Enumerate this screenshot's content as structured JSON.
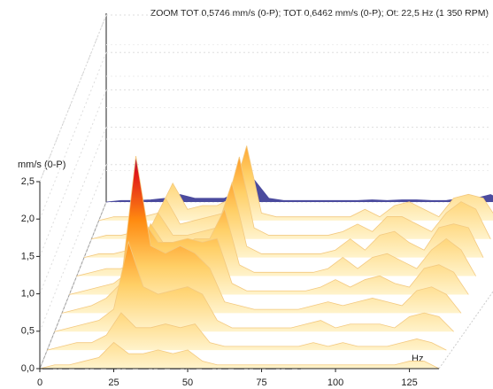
{
  "chart_data": {
    "type": "waterfall",
    "title": "ZOOM TOT 0,5746 mm/s (0-P); TOT 0,6462 mm/s (0-P); Ot: 22,5 Hz (1 350 RPM)",
    "ylabel": "mm/s (0-P)",
    "xlabel": "Hz",
    "x": [
      0,
      5,
      10,
      15,
      20,
      25,
      30,
      35,
      40,
      45,
      50,
      55,
      60,
      65,
      70,
      75,
      80,
      85,
      90,
      95,
      100,
      105,
      110,
      115,
      120,
      125,
      130,
      135
    ],
    "series": [
      {
        "values": [
          0,
          0.05,
          0.05,
          0.1,
          0.15,
          0.35,
          0.2,
          0.2,
          0.25,
          0.2,
          0.25,
          0.1,
          0.05,
          0.05,
          0.05,
          0.05,
          0.05,
          0.05,
          0.05,
          0.05,
          0.05,
          0.05,
          0.05,
          0.05,
          0.05,
          0.1,
          0.1,
          0
        ]
      },
      {
        "values": [
          0,
          0.05,
          0.1,
          0.1,
          0.2,
          0.5,
          0.3,
          0.3,
          0.35,
          0.3,
          0.35,
          0.1,
          0.05,
          0.05,
          0.05,
          0.05,
          0.05,
          0.05,
          0.1,
          0.05,
          0.1,
          0.05,
          0.05,
          0.05,
          0.1,
          0.15,
          0.1,
          0
        ]
      },
      {
        "values": [
          0,
          0.05,
          0.1,
          0.15,
          0.3,
          1.2,
          0.6,
          0.5,
          0.55,
          0.6,
          0.5,
          0.15,
          0.05,
          0.05,
          0.05,
          0.05,
          0.05,
          0.1,
          0.15,
          0.05,
          0.1,
          0.1,
          0.1,
          0.05,
          0.2,
          0.25,
          0.2,
          0
        ]
      },
      {
        "values": [
          0,
          0.05,
          0.1,
          0.2,
          0.4,
          2.1,
          0.9,
          0.8,
          0.9,
          0.8,
          0.6,
          0.15,
          0.1,
          0.05,
          0.05,
          0.05,
          0.05,
          0.1,
          0.15,
          0.1,
          0.15,
          0.2,
          0.15,
          0.1,
          0.3,
          0.35,
          0.25,
          0
        ]
      },
      {
        "values": [
          0,
          0.05,
          0.1,
          0.15,
          0.3,
          1.0,
          0.7,
          0.7,
          0.75,
          0.7,
          0.75,
          0.15,
          0.05,
          0.05,
          0.05,
          0.05,
          0.05,
          0.1,
          0.2,
          0.1,
          0.2,
          0.25,
          0.15,
          0.1,
          0.35,
          0.4,
          0.3,
          0
        ]
      },
      {
        "values": [
          0,
          0.05,
          0.1,
          0.1,
          0.2,
          0.7,
          0.4,
          0.4,
          0.5,
          0.5,
          0.9,
          0.15,
          0.05,
          0.05,
          0.05,
          0.05,
          0.05,
          0.1,
          0.25,
          0.1,
          0.25,
          0.3,
          0.2,
          0.1,
          0.35,
          0.5,
          0.35,
          0
        ]
      },
      {
        "values": [
          0,
          0.05,
          0.05,
          0.1,
          0.2,
          0.6,
          0.3,
          0.3,
          0.35,
          0.4,
          1.0,
          0.15,
          0.05,
          0.05,
          0.05,
          0.05,
          0.05,
          0.1,
          0.25,
          0.1,
          0.3,
          0.35,
          0.2,
          0.1,
          0.4,
          0.45,
          0.4,
          0
        ]
      },
      {
        "values": [
          0,
          0.05,
          0.05,
          0.1,
          0.15,
          0.55,
          0.2,
          0.25,
          0.3,
          0.35,
          1.1,
          0.15,
          0.05,
          0.05,
          0.05,
          0.05,
          0.05,
          0.1,
          0.2,
          0.1,
          0.3,
          0.3,
          0.2,
          0.1,
          0.35,
          0.5,
          0.4,
          0
        ]
      },
      {
        "values": [
          0,
          0.05,
          0.05,
          0.05,
          0.1,
          0.5,
          0.15,
          0.2,
          0.2,
          0.3,
          1.0,
          0.1,
          0.05,
          0.05,
          0.05,
          0.05,
          0.05,
          0.05,
          0.15,
          0.05,
          0.2,
          0.25,
          0.15,
          0.05,
          0.3,
          0.35,
          0.3,
          0
        ]
      },
      {
        "color": "#4b4b9e",
        "values": [
          0,
          0.02,
          0.02,
          0.03,
          0.05,
          0.1,
          0.05,
          0.05,
          0.05,
          0.15,
          0.3,
          0.05,
          0.02,
          0.02,
          0.02,
          0.02,
          0.02,
          0.02,
          0.03,
          0.02,
          0.03,
          0.03,
          0.02,
          0.02,
          0.05,
          0.05,
          0.1,
          0
        ]
      }
    ],
    "colors": [
      "#fff3cc",
      "#ffcf66",
      "#ff8a10",
      "#e01818",
      "#2a2ad0"
    ],
    "xlim": [
      0,
      135
    ],
    "xticks": [
      0,
      25,
      50,
      75,
      100,
      125
    ],
    "ylim": [
      0,
      2.5
    ],
    "yticks": [
      {
        "value": 0,
        "label": "0,0"
      },
      {
        "value": 0.5,
        "label": "0,5"
      },
      {
        "value": 1,
        "label": "1,0"
      },
      {
        "value": 1.5,
        "label": "1,5"
      },
      {
        "value": 2,
        "label": "2,0"
      },
      {
        "value": 2.5,
        "label": "2,5"
      }
    ],
    "grid": true
  }
}
